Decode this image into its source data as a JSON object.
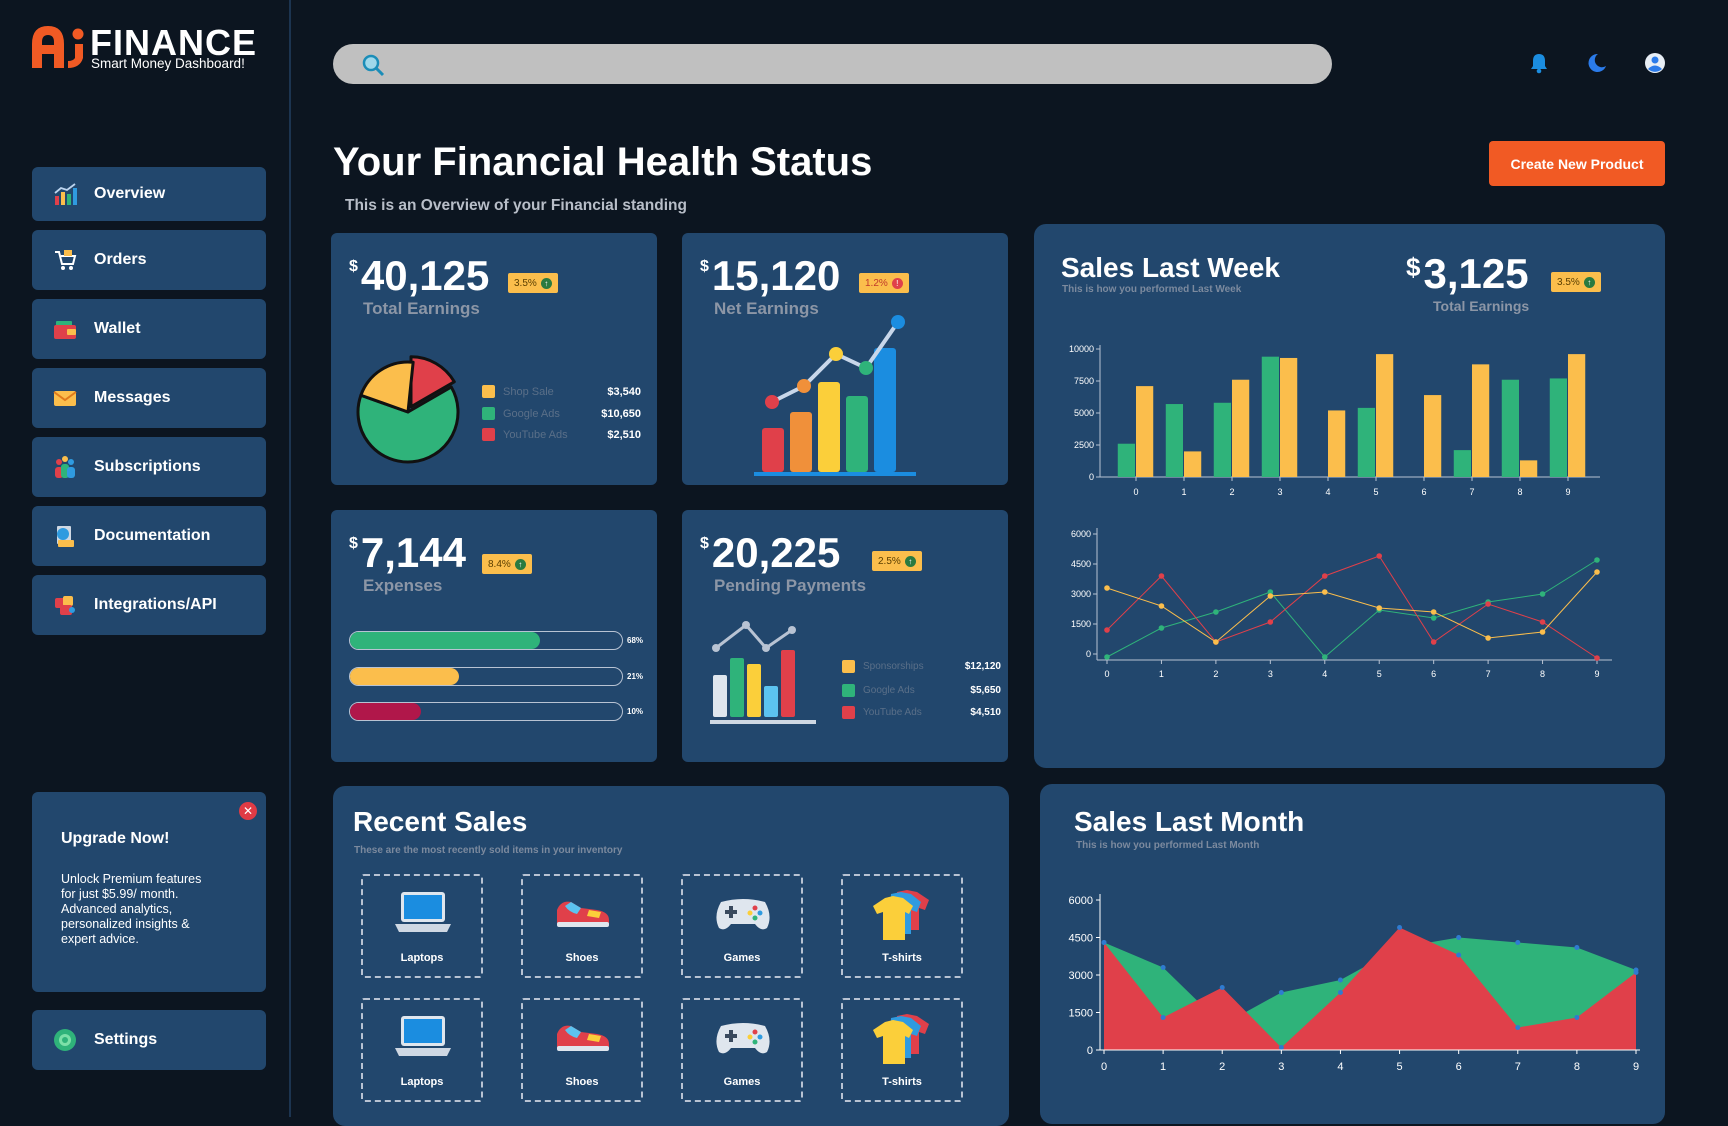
{
  "app": {
    "brand": "FINANCE",
    "tagline": "Smart Money Dashboard!"
  },
  "sidebar": {
    "items": [
      {
        "label": "Overview",
        "icon": "chart-icon"
      },
      {
        "label": "Orders",
        "icon": "orders-icon"
      },
      {
        "label": "Wallet",
        "icon": "wallet-icon"
      },
      {
        "label": "Messages",
        "icon": "envelope-icon"
      },
      {
        "label": "Subscriptions",
        "icon": "people-icon"
      },
      {
        "label": "Documentation",
        "icon": "documentation-icon"
      },
      {
        "label": "Integrations/API",
        "icon": "puzzle-icon"
      }
    ],
    "upgrade": {
      "title": "Upgrade Now!",
      "text": "Unlock Premium features for just $5.99/ month. Advanced analytics, personalized insights & expert advice."
    },
    "settings_label": "Settings"
  },
  "header": {
    "search_placeholder": "",
    "icons": [
      "bell-icon",
      "moon-icon",
      "user-icon"
    ]
  },
  "page": {
    "title": "Your Financial Health Status",
    "subtitle": "This is an Overview of your Financial standing",
    "create_button": "Create New Product"
  },
  "colors": {
    "bg": "#0c1520",
    "card": "#22476d",
    "green": "#2fb37a",
    "yellow": "#fbbe4c",
    "red": "#e0404a",
    "accent": "#f15a24"
  },
  "cards": {
    "total_earnings": {
      "currency": "$",
      "value": "40,125",
      "badge": "3.5%",
      "label": "Total Earnings",
      "legend": [
        {
          "name": "Shop Sale",
          "value": "$3,540",
          "color": "#fbbe4c"
        },
        {
          "name": "Google Ads",
          "value": "$10,650",
          "color": "#2fb37a"
        },
        {
          "name": "YouTube Ads",
          "value": "$2,510",
          "color": "#e0404a"
        }
      ]
    },
    "net_earnings": {
      "currency": "$",
      "value": "15,120",
      "badge": "1.2%",
      "label": "Net Earnings"
    },
    "expenses": {
      "currency": "$",
      "value": "7,144",
      "badge": "8.4%",
      "label": "Expenses",
      "bars": [
        {
          "pct": "68%",
          "fill": 0.7,
          "color": "#2fb37a"
        },
        {
          "pct": "21%",
          "fill": 0.4,
          "color": "#fbbe4c"
        },
        {
          "pct": "10%",
          "fill": 0.26,
          "color": "#b0174a"
        }
      ]
    },
    "pending": {
      "currency": "$",
      "value": "20,225",
      "badge": "2.5%",
      "label": "Pending Payments",
      "legend": [
        {
          "name": "Sponsorships",
          "value": "$12,120",
          "color": "#fbbe4c"
        },
        {
          "name": "Google Ads",
          "value": "$5,650",
          "color": "#2fb37a"
        },
        {
          "name": "YouTube Ads",
          "value": "$4,510",
          "color": "#e0404a"
        }
      ]
    }
  },
  "sales_week": {
    "title": "Sales Last Week",
    "subtitle": "This is how you performed Last Week",
    "currency": "$",
    "value": "3,125",
    "badge": "3.5%",
    "label": "Total Earnings"
  },
  "recent_sales": {
    "title": "Recent Sales",
    "subtitle": "These are the most recently sold items in your inventory",
    "items": [
      {
        "label": "Laptops",
        "icon": "laptop-icon"
      },
      {
        "label": "Shoes",
        "icon": "shoe-icon"
      },
      {
        "label": "Games",
        "icon": "gamepad-icon"
      },
      {
        "label": "T-shirts",
        "icon": "tshirt-icon"
      },
      {
        "label": "Laptops",
        "icon": "laptop-icon"
      },
      {
        "label": "Shoes",
        "icon": "shoe-icon"
      },
      {
        "label": "Games",
        "icon": "gamepad-icon"
      },
      {
        "label": "T-shirts",
        "icon": "tshirt-icon"
      }
    ]
  },
  "sales_month": {
    "title": "Sales Last Month",
    "subtitle": "This is how you performed Last Month"
  },
  "chart_data": [
    {
      "type": "pie",
      "labels": [
        "Shop Sale",
        "Google Ads",
        "YouTube Ads"
      ],
      "values": [
        3540,
        10650,
        2510
      ],
      "colors": [
        "#fbbe4c",
        "#2fb37a",
        "#e0404a"
      ]
    },
    {
      "type": "bar",
      "x": [
        0,
        1,
        2,
        3,
        4,
        5,
        6,
        7,
        8,
        9
      ],
      "ylim": [
        0,
        10000
      ],
      "yticks": [
        0,
        2500,
        5000,
        7500,
        10000
      ],
      "series": [
        {
          "values": [
            2600,
            5700,
            5800,
            9400,
            0,
            5400,
            0,
            2100,
            7600,
            7700
          ],
          "color": "#2fb37a"
        },
        {
          "values": [
            7100,
            2000,
            7600,
            9300,
            5200,
            9600,
            6400,
            8800,
            1300,
            9600
          ],
          "color": "#fbbe4c"
        }
      ]
    },
    {
      "type": "line",
      "x": [
        0,
        1,
        2,
        3,
        4,
        5,
        6,
        7,
        8,
        9
      ],
      "ylim": [
        -300,
        6300
      ],
      "yticks": [
        0,
        1500,
        3000,
        4500,
        6000
      ],
      "series": [
        {
          "values": [
            -150,
            1300,
            2100,
            3100,
            -150,
            2200,
            1800,
            2600,
            3000,
            4700
          ],
          "color": "#2fb37a"
        },
        {
          "values": [
            1200,
            3900,
            600,
            1600,
            3900,
            4900,
            600,
            2500,
            1600,
            -200
          ],
          "color": "#e0404a"
        },
        {
          "values": [
            3300,
            2400,
            600,
            2900,
            3100,
            2300,
            2100,
            800,
            1100,
            4100
          ],
          "color": "#fbbe4c"
        }
      ]
    },
    {
      "type": "area",
      "x": [
        0,
        1,
        2,
        3,
        4,
        5,
        6,
        7,
        8,
        9
      ],
      "ylim": [
        0,
        6000
      ],
      "yticks": [
        0,
        1500,
        3000,
        4500,
        6000
      ],
      "series": [
        {
          "values": [
            4300,
            3300,
            1000,
            2300,
            2800,
            4100,
            4500,
            4300,
            4100,
            3200
          ],
          "color": "#2fb37a"
        },
        {
          "values": [
            4300,
            1300,
            2500,
            100,
            2300,
            4900,
            3800,
            900,
            1300,
            3100
          ],
          "color": "#e0404a"
        }
      ]
    }
  ]
}
